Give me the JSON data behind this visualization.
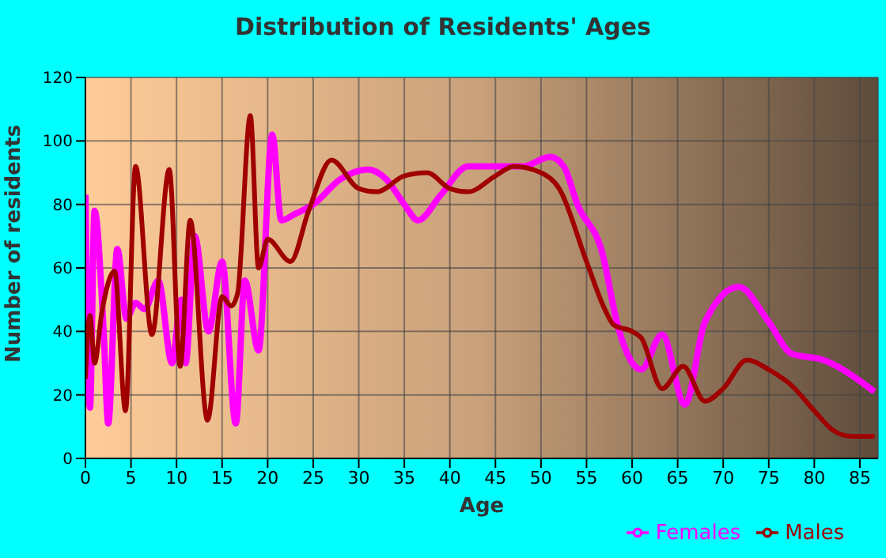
{
  "chart_data": {
    "type": "line",
    "title": "Distribution of Residents' Ages",
    "xlabel": "Age",
    "ylabel": "Number of residents",
    "xlim": [
      0,
      87
    ],
    "xticks": [
      0,
      5,
      10,
      15,
      20,
      25,
      30,
      35,
      40,
      45,
      50,
      55,
      60,
      65,
      70,
      75,
      80,
      85
    ],
    "ylim": [
      0,
      120
    ],
    "yticks": [
      0,
      20,
      40,
      60,
      80,
      100,
      120
    ],
    "grid": true,
    "legend": "bottom",
    "marker": "none",
    "line_style": "solid",
    "series": [
      {
        "name": "Males",
        "color": "#a00000",
        "x": [
          0,
          0.5,
          1,
          1.8,
          3.2,
          4.4,
          5.5,
          7.3,
          9.2,
          10.4,
          11.5,
          13.4,
          15,
          16,
          16.7,
          18.1,
          19,
          20,
          22.5,
          24.5,
          27,
          30,
          32,
          35,
          37.5,
          40,
          42,
          45,
          47,
          50,
          52,
          55,
          57,
          58,
          60,
          61,
          63.3,
          65.6,
          68,
          70,
          72.6,
          75,
          77.5,
          80,
          82,
          84,
          86.6
        ],
        "values": [
          25,
          45,
          30,
          46,
          59,
          15,
          92,
          39,
          91,
          29,
          75,
          12,
          51,
          48,
          52,
          108,
          60,
          69,
          62,
          78,
          94,
          85,
          84,
          89,
          90,
          85,
          84,
          89,
          92,
          90,
          85,
          62,
          47,
          42,
          40,
          38,
          22,
          29,
          18,
          22,
          31,
          28,
          23,
          15,
          9,
          7,
          7
        ]
      },
      {
        "name": "Females",
        "color": "#ff00ff",
        "x": [
          0,
          0.5,
          1,
          2,
          2.5,
          3.5,
          4.5,
          5.5,
          6.5,
          8,
          9.5,
          10.5,
          11,
          12,
          13.5,
          15,
          16.5,
          17.5,
          19,
          20.5,
          21.5,
          23,
          25,
          28,
          31,
          33,
          35,
          36.5,
          39,
          42,
          45,
          48,
          51,
          52.5,
          54,
          56.7,
          58.5,
          61,
          63.3,
          65.8,
          68,
          71.7,
          75,
          77.5,
          81,
          86.6
        ],
        "values": [
          83,
          16,
          78,
          40,
          11,
          66,
          44,
          49,
          47,
          56,
          30,
          50,
          30,
          70,
          40,
          62,
          11,
          56,
          34,
          102,
          75,
          77,
          80,
          88,
          91,
          88,
          80,
          75,
          83,
          92,
          92,
          92,
          95,
          92,
          80,
          65,
          41,
          28,
          39,
          17,
          43,
          54,
          43,
          33,
          31,
          21
        ]
      }
    ]
  }
}
